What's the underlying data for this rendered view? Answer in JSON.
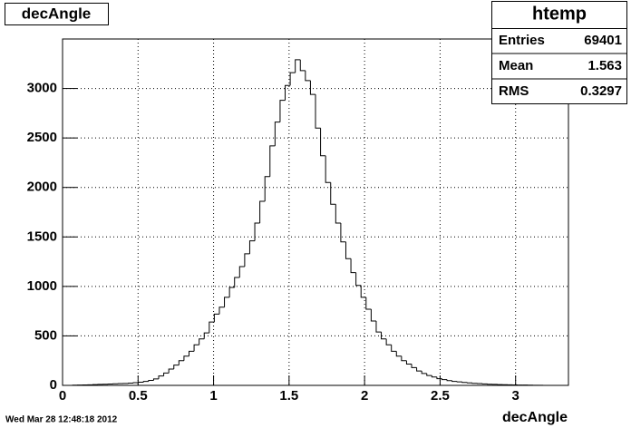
{
  "chart_data": {
    "type": "histogram",
    "title": "decAngle",
    "x_label": "decAngle",
    "timestamp": "Wed Mar 28 12:48:18 2012",
    "color": "#000000",
    "bins": [
      0,
      0.0335,
      0.067,
      0.1005,
      0.134,
      0.1675,
      0.201,
      0.2345,
      0.268,
      0.3015,
      0.335,
      0.3685,
      0.402,
      0.4355,
      0.469,
      0.5025,
      0.536,
      0.5695,
      0.603,
      0.6365,
      0.67,
      0.7035,
      0.737,
      0.7705,
      0.804,
      0.8375,
      0.871,
      0.9045,
      0.938,
      0.9715,
      1.005,
      1.0385,
      1.072,
      1.1055,
      1.139,
      1.1725,
      1.206,
      1.2395,
      1.273,
      1.3065,
      1.34,
      1.3735,
      1.407,
      1.4405,
      1.474,
      1.5075,
      1.541,
      1.5745,
      1.608,
      1.6415,
      1.675,
      1.7085,
      1.742,
      1.7755,
      1.809,
      1.8425,
      1.876,
      1.9095,
      1.943,
      1.9765,
      2.01,
      2.0435,
      2.077,
      2.1105,
      2.144,
      2.1775,
      2.211,
      2.2445,
      2.278,
      2.3115,
      2.345,
      2.3785,
      2.412,
      2.4455,
      2.479,
      2.5125,
      2.546,
      2.5795,
      2.613,
      2.6465,
      2.68,
      2.7135,
      2.747,
      2.7805,
      2.814,
      2.8475,
      2.881,
      2.9145,
      2.948,
      2.9815,
      3.015,
      3.0485,
      3.082,
      3.1155,
      3.149,
      3.1825,
      3.216,
      3.2495,
      3.283,
      3.3165,
      3.35
    ],
    "values": [
      0,
      0,
      2,
      3,
      5,
      6,
      8,
      10,
      12,
      14,
      16,
      18,
      20,
      23,
      27,
      32,
      40,
      50,
      65,
      95,
      125,
      165,
      205,
      250,
      295,
      345,
      410,
      470,
      530,
      640,
      720,
      790,
      890,
      990,
      1090,
      1200,
      1330,
      1460,
      1640,
      1860,
      2110,
      2420,
      2660,
      2880,
      3030,
      3160,
      3290,
      3180,
      3080,
      2940,
      2600,
      2320,
      2050,
      1830,
      1640,
      1450,
      1280,
      1140,
      1010,
      890,
      770,
      650,
      540,
      470,
      410,
      345,
      295,
      250,
      215,
      180,
      145,
      120,
      100,
      85,
      68,
      58,
      48,
      40,
      35,
      30,
      25,
      21,
      18,
      15,
      12,
      10,
      8,
      7,
      6,
      5,
      4,
      3,
      2,
      1,
      1,
      0,
      0,
      0,
      0,
      0
    ],
    "xlim": [
      0,
      3.35
    ],
    "xticks": [
      0,
      0.5,
      1,
      1.5,
      2,
      2.5,
      3
    ],
    "ylim": [
      0,
      3500
    ],
    "yticks": [
      0,
      500,
      1000,
      1500,
      2000,
      2500,
      3000
    ],
    "grid": true,
    "stats": {
      "title": "htemp",
      "rows": [
        {
          "label": "Entries",
          "value": 69401
        },
        {
          "label": "Mean",
          "value": 1.563
        },
        {
          "label": "RMS",
          "value": 0.3297
        }
      ]
    }
  }
}
